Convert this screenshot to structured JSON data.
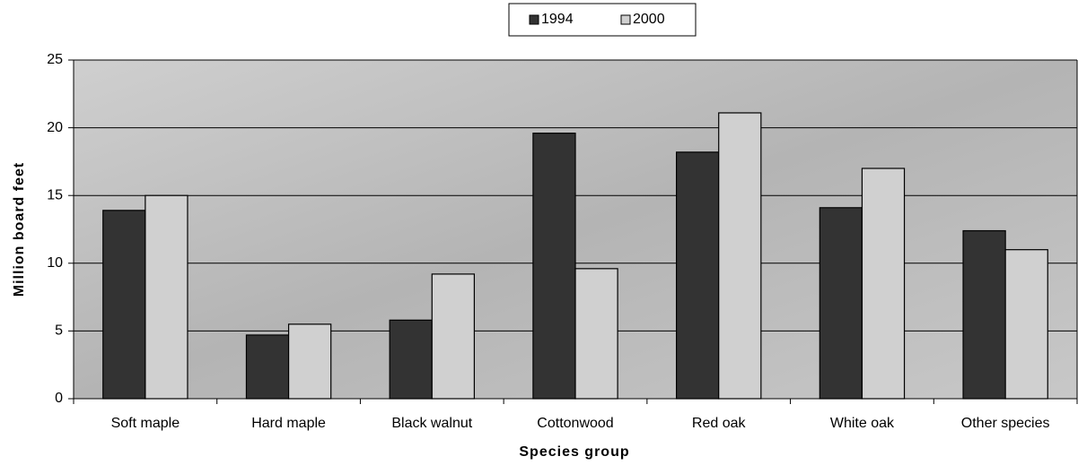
{
  "chart_data": {
    "type": "bar",
    "x_label": "Species group",
    "y_label": "Million board feet",
    "categories": [
      "Soft maple",
      "Hard maple",
      "Black walnut",
      "Cottonwood",
      "Red oak",
      "White oak",
      "Other species"
    ],
    "series": [
      {
        "name": "1994",
        "color": "#333333",
        "values": [
          13.9,
          4.7,
          5.8,
          19.6,
          18.2,
          14.1,
          12.4
        ]
      },
      {
        "name": "2000",
        "color": "#d0d0d0",
        "values": [
          15.0,
          5.5,
          9.2,
          9.6,
          21.1,
          17.0,
          11.0
        ]
      }
    ],
    "ylim": [
      0,
      25
    ],
    "yticks": [
      0,
      5,
      10,
      15,
      20,
      25
    ],
    "grid": true,
    "legend": "top"
  }
}
